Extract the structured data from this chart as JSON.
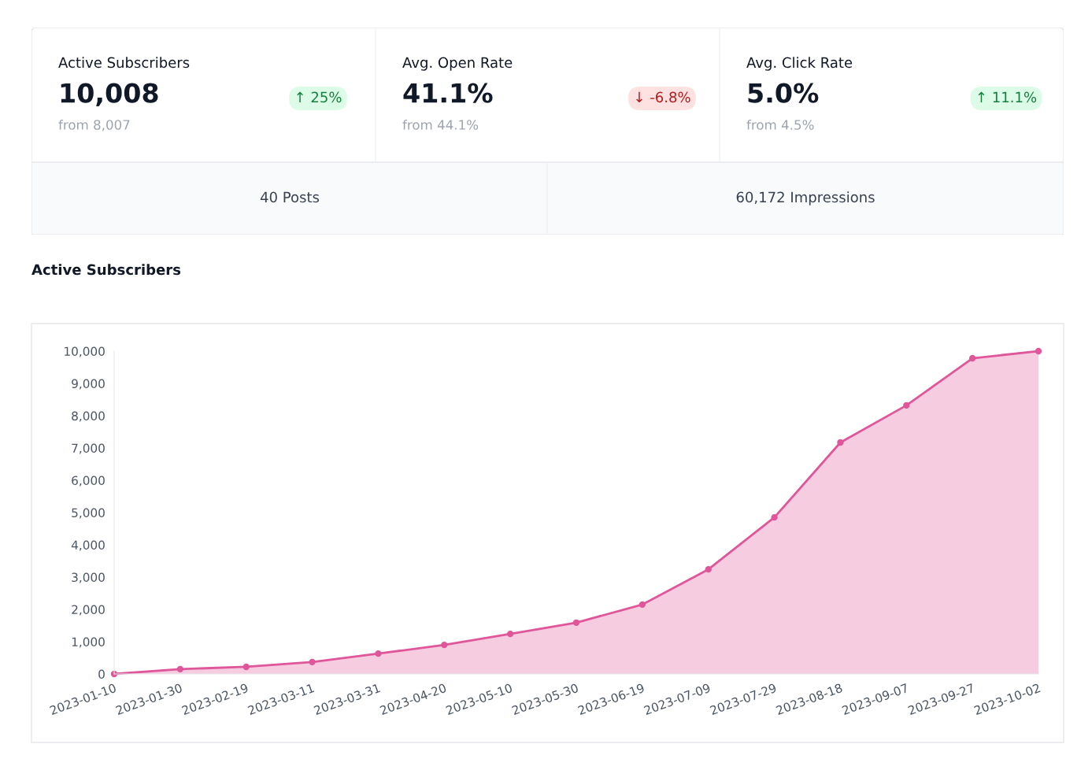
{
  "chart_data": [
    {
      "type": "other",
      "annotations": [
        "Active Subscribers",
        "10,008",
        "↑ 25%",
        "from 8,007",
        "Avg. Open Rate",
        "41.1%",
        "↓ -6.8%",
        "from 44.1%",
        "Avg. Click Rate",
        "5.0%",
        "↑ 11.1%",
        "from 4.5%",
        "40 Posts",
        "60,172 Impressions"
      ]
    },
    {
      "type": "area",
      "title": "Active Subscribers",
      "categories": [
        "2023-01-10",
        "2023-01-30",
        "2023-02-19",
        "2023-03-11",
        "2023-03-31",
        "2023-04-20",
        "2023-05-10",
        "2023-05-30",
        "2023-06-19",
        "2023-07-09",
        "2023-07-29",
        "2023-08-18",
        "2023-09-07",
        "2023-09-27",
        "2023-10-02"
      ],
      "series": [
        {
          "color": "#e0569a",
          "values": [
            0,
            150,
            220,
            370,
            630,
            900,
            1240,
            1590,
            2150,
            3240,
            4850,
            7170,
            8320,
            9780,
            10000
          ]
        }
      ],
      "ylim": [
        0,
        10000
      ],
      "yticks": [
        0,
        {
          "value": 1000,
          "label": "1,000"
        },
        {
          "value": 2000,
          "label": "2,000"
        },
        {
          "value": 3000,
          "label": "3,000"
        },
        {
          "value": 4000,
          "label": "4,000"
        },
        {
          "value": 5000,
          "label": "5,000"
        },
        {
          "value": 6000,
          "label": "6,000"
        },
        {
          "value": 7000,
          "label": "7,000"
        },
        {
          "value": 8000,
          "label": "8,000"
        },
        {
          "value": 9000,
          "label": "9,000"
        },
        {
          "value": 10000,
          "label": "10,000"
        }
      ],
      "marker": "circle",
      "grid": false,
      "legend": false
    }
  ]
}
